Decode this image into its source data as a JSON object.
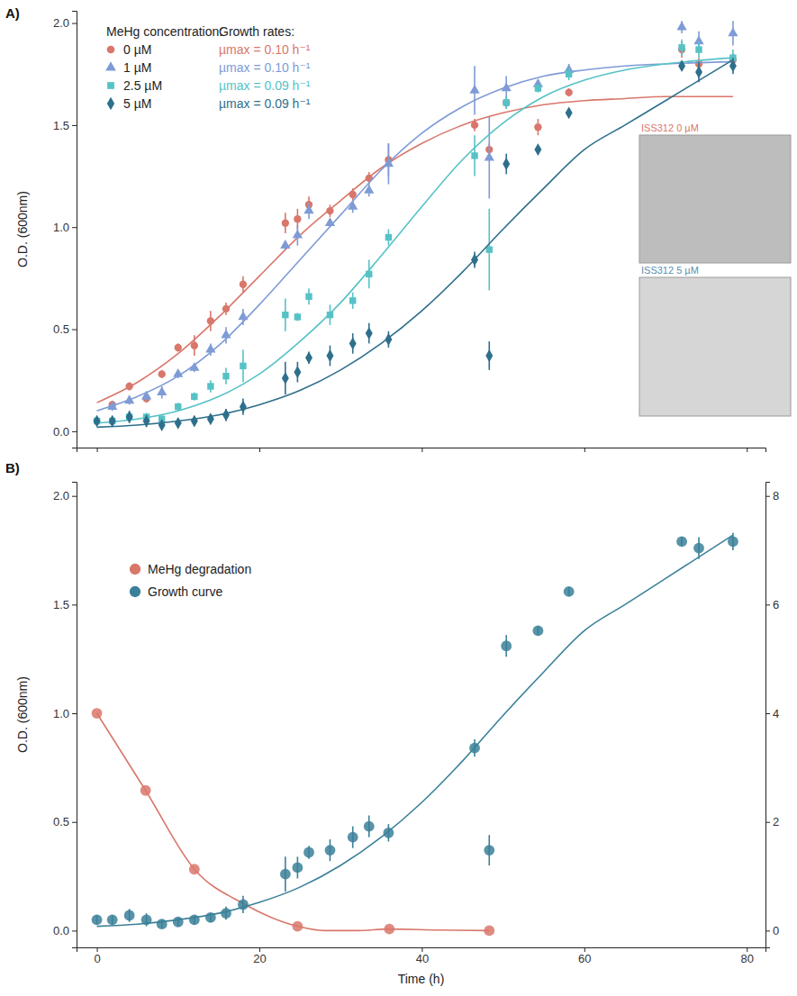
{
  "chart_data": [
    {
      "type": "scatter",
      "panel_label": "A)",
      "y_label": "O.D. (600nm)",
      "legend_title": "MeHg concentration:",
      "growth_rate_title": "Growth rates:",
      "legend": "top-left",
      "tick_labels": "y",
      "xlim": [
        -2.5,
        82.3
      ],
      "xticks": [
        0,
        20,
        40,
        60,
        80
      ],
      "ylim": [
        -0.08,
        2.06
      ],
      "yticks": [
        {
          "value": 0,
          "label": "0.0"
        },
        {
          "value": 0.5,
          "label": "0.5"
        },
        {
          "value": 1,
          "label": "1.0"
        },
        {
          "value": 1.5,
          "label": "1.5"
        },
        {
          "value": 2,
          "label": "2.0"
        }
      ],
      "series": [
        {
          "name": "0 µM",
          "color": "#d9776b",
          "marker": "circle",
          "growth_rate_label": "µmax = 0.10 h⁻¹",
          "x": [
            1.9,
            4,
            6.1,
            8,
            10,
            12,
            14,
            15.9,
            18,
            23.2,
            24.7,
            26.1,
            28.7,
            31.5,
            33.5,
            35.9,
            46.5,
            48.3,
            50.4,
            54.3,
            58.1,
            72,
            74.1,
            78.3
          ],
          "values": [
            0.13,
            0.22,
            0.16,
            0.28,
            0.41,
            0.42,
            0.54,
            0.6,
            0.72,
            1.02,
            1.04,
            1.11,
            1.08,
            1.16,
            1.24,
            1.33,
            1.5,
            1.38,
            1.61,
            1.49,
            1.66,
            1.87,
            1.8,
            1.82
          ],
          "errors": [
            0.02,
            0.02,
            0.02,
            0.02,
            0.02,
            0.05,
            0.05,
            0.03,
            0.04,
            0.05,
            0.05,
            0.04,
            0.03,
            0.03,
            0.03,
            0.08,
            0.03,
            0.03,
            0.03,
            0.04,
            0.02,
            0.04,
            0.03,
            0.03
          ],
          "fit": {
            "x": [
              0,
              5,
              10,
              15,
              20,
              25,
              30,
              35,
              40,
              45,
              50,
              55,
              60,
              65,
              70,
              78.3
            ],
            "values": [
              0.14,
              0.24,
              0.38,
              0.56,
              0.76,
              0.96,
              1.13,
              1.29,
              1.41,
              1.5,
              1.56,
              1.6,
              1.62,
              1.63,
              1.64,
              1.64
            ]
          }
        },
        {
          "name": "1 µM",
          "color": "#7e9bd6",
          "marker": "triangle",
          "growth_rate_label": "µmax = 0.10 h⁻¹",
          "x": [
            1.9,
            4,
            6.1,
            8,
            10,
            12,
            14,
            15.9,
            18,
            23.2,
            24.7,
            26.1,
            28.7,
            31.5,
            33.5,
            35.9,
            46.5,
            48.3,
            50.4,
            54.3,
            58.1,
            72,
            74.1,
            78.3
          ],
          "values": [
            0.12,
            0.15,
            0.17,
            0.19,
            0.28,
            0.31,
            0.4,
            0.47,
            0.56,
            0.91,
            0.96,
            1.08,
            1.02,
            1.1,
            1.18,
            1.31,
            1.67,
            1.34,
            1.68,
            1.7,
            1.77,
            1.98,
            1.91,
            1.95
          ],
          "errors": [
            0.02,
            0.02,
            0.02,
            0.03,
            0.02,
            0.02,
            0.03,
            0.04,
            0.04,
            0.02,
            0.05,
            0.04,
            0.02,
            0.03,
            0.03,
            0.1,
            0.12,
            0.2,
            0.06,
            0.02,
            0.03,
            0.03,
            0.05,
            0.06
          ],
          "fit": {
            "x": [
              0,
              5,
              10,
              15,
              20,
              25,
              30,
              35,
              40,
              45,
              50,
              55,
              60,
              65,
              70,
              78.3
            ],
            "values": [
              0.1,
              0.17,
              0.27,
              0.42,
              0.62,
              0.84,
              1.06,
              1.28,
              1.46,
              1.59,
              1.68,
              1.74,
              1.77,
              1.79,
              1.8,
              1.81
            ]
          }
        },
        {
          "name": "2.5 µM",
          "color": "#56c2c6",
          "marker": "square",
          "growth_rate_label": "µmax = 0.09 h⁻¹",
          "x": [
            0,
            1.9,
            4,
            6.1,
            8,
            10,
            12,
            14,
            15.9,
            18,
            23.2,
            24.7,
            26.1,
            28.7,
            31.5,
            33.5,
            35.9,
            46.5,
            48.3,
            50.4,
            54.3,
            58.1,
            72,
            74.1,
            78.3
          ],
          "values": [
            0.05,
            0.05,
            0.07,
            0.07,
            0.06,
            0.12,
            0.17,
            0.22,
            0.27,
            0.32,
            0.57,
            0.56,
            0.66,
            0.57,
            0.64,
            0.77,
            0.95,
            1.35,
            0.89,
            1.61,
            1.68,
            1.75,
            1.88,
            1.87,
            1.83
          ],
          "errors": [
            0.01,
            0.01,
            0.02,
            0.02,
            0.02,
            0.02,
            0.02,
            0.03,
            0.04,
            0.08,
            0.08,
            0.02,
            0.04,
            0.05,
            0.04,
            0.07,
            0.04,
            0.1,
            0.2,
            0.03,
            0.02,
            0.03,
            0.04,
            0.04,
            0.04
          ],
          "fit": {
            "x": [
              0,
              5,
              10,
              15,
              20,
              25,
              30,
              35,
              40,
              45,
              50,
              55,
              60,
              65,
              70,
              78.3
            ],
            "values": [
              0.04,
              0.06,
              0.1,
              0.17,
              0.28,
              0.44,
              0.63,
              0.86,
              1.1,
              1.33,
              1.51,
              1.64,
              1.72,
              1.77,
              1.8,
              1.83
            ]
          }
        },
        {
          "name": "5 µM",
          "color": "#2e6f8c",
          "marker": "diamond",
          "growth_rate_label": "µmax = 0.09 h⁻¹",
          "x": [
            0,
            1.9,
            4,
            6.1,
            8,
            10,
            12,
            14,
            15.9,
            18,
            23.2,
            24.7,
            26.1,
            28.7,
            31.5,
            33.5,
            35.9,
            46.5,
            48.3,
            50.4,
            54.3,
            58.1,
            72,
            74.1,
            78.3
          ],
          "values": [
            0.05,
            0.05,
            0.07,
            0.05,
            0.03,
            0.04,
            0.05,
            0.06,
            0.08,
            0.12,
            0.26,
            0.29,
            0.36,
            0.37,
            0.43,
            0.48,
            0.45,
            0.84,
            0.37,
            1.31,
            1.38,
            1.56,
            1.79,
            1.76,
            1.79
          ],
          "errors": [
            0.02,
            0.02,
            0.03,
            0.03,
            0.02,
            0.02,
            0.02,
            0.02,
            0.03,
            0.04,
            0.08,
            0.05,
            0.03,
            0.05,
            0.05,
            0.05,
            0.04,
            0.04,
            0.07,
            0.05,
            0.02,
            0.02,
            0.02,
            0.05,
            0.04
          ],
          "fit": {
            "x": [
              0,
              5,
              10,
              15,
              20,
              25,
              30,
              35,
              40,
              45,
              50,
              55,
              60,
              65,
              70,
              78.3
            ],
            "values": [
              0.02,
              0.03,
              0.05,
              0.08,
              0.13,
              0.2,
              0.3,
              0.43,
              0.59,
              0.78,
              0.99,
              1.19,
              1.38,
              1.5,
              1.62,
              1.82
            ]
          }
        }
      ],
      "annotations": [
        {
          "text": "ISS312 0 µM",
          "color": "#d9776b"
        },
        {
          "text": "ISS312 5 µM",
          "color": "#5a8fb0"
        }
      ]
    },
    {
      "type": "scatter",
      "panel_label": "B)",
      "y_label": "O.D. (600nm)",
      "x_label": "Time (h)",
      "legend": "top-left",
      "xlim": [
        -2.5,
        82.3
      ],
      "xticks": [
        0,
        20,
        40,
        60,
        80
      ],
      "ylim": [
        -0.077,
        2.065
      ],
      "yticks": [
        {
          "value": 0,
          "label": "0.0"
        },
        {
          "value": 0.5,
          "label": "0.5"
        },
        {
          "value": 1,
          "label": "1.0"
        },
        {
          "value": 1.5,
          "label": "1.5"
        },
        {
          "value": 2,
          "label": "2.0"
        }
      ],
      "y2lim": [
        -0.308,
        8.26
      ],
      "y2ticks": [
        0,
        2,
        4,
        6,
        8
      ],
      "series": [
        {
          "name": "MeHg degradation",
          "color": "#d9776b",
          "marker": "circle",
          "axis": "y2",
          "x": [
            0,
            6,
            12,
            24.7,
            36,
            48.3
          ],
          "values": [
            4.0,
            2.58,
            1.13,
            0.08,
            0.03,
            0.0
          ],
          "fit": {
            "x": [
              0,
              6,
              12,
              18,
              24.7,
              28,
              32,
              36,
              42,
              48.3
            ],
            "values": [
              4.0,
              2.58,
              1.13,
              0.5,
              0.08,
              0.0,
              0.0,
              0.03,
              0.01,
              0.0
            ]
          }
        },
        {
          "name": "Growth curve",
          "color": "#3b8099",
          "marker": "circle",
          "x": [
            0,
            1.9,
            4,
            6.1,
            8,
            10,
            12,
            14,
            15.9,
            18,
            23.2,
            24.7,
            26.1,
            28.7,
            31.5,
            33.5,
            35.9,
            46.5,
            48.3,
            50.4,
            54.3,
            58.1,
            72,
            74.1,
            78.3
          ],
          "values": [
            0.05,
            0.05,
            0.07,
            0.05,
            0.03,
            0.04,
            0.05,
            0.06,
            0.08,
            0.12,
            0.26,
            0.29,
            0.36,
            0.37,
            0.43,
            0.48,
            0.45,
            0.84,
            0.37,
            1.31,
            1.38,
            1.56,
            1.79,
            1.76,
            1.79
          ],
          "errors": [
            0.02,
            0.02,
            0.03,
            0.03,
            0.02,
            0.02,
            0.02,
            0.02,
            0.03,
            0.04,
            0.08,
            0.05,
            0.03,
            0.05,
            0.05,
            0.05,
            0.04,
            0.04,
            0.07,
            0.05,
            0.02,
            0.02,
            0.02,
            0.05,
            0.04
          ],
          "fit": {
            "x": [
              0,
              5,
              10,
              15,
              20,
              25,
              30,
              35,
              40,
              45,
              50,
              55,
              60,
              65,
              70,
              78.3
            ],
            "values": [
              0.02,
              0.03,
              0.05,
              0.08,
              0.13,
              0.2,
              0.3,
              0.43,
              0.59,
              0.78,
              0.99,
              1.19,
              1.38,
              1.5,
              1.62,
              1.82
            ]
          }
        }
      ]
    }
  ]
}
